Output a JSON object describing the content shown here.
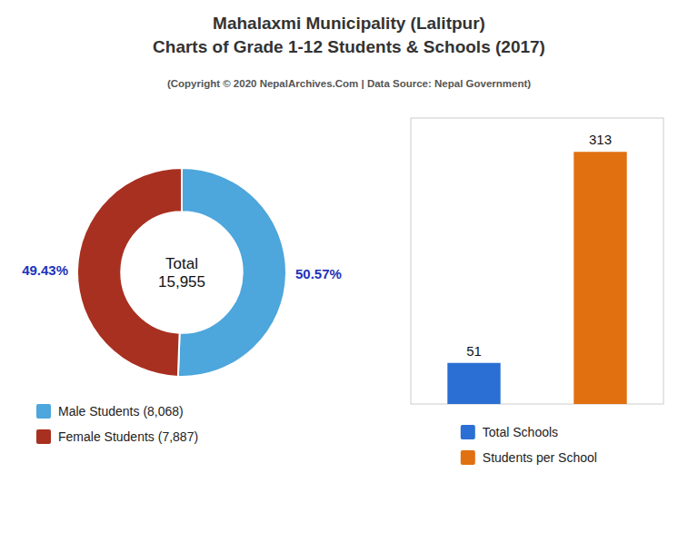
{
  "chart_data": [
    {
      "type": "donut",
      "title": "Mahalaxmi Municipality (Lalitpur)\nCharts of Grade 1-12 Students & Schools (2017)",
      "subtitle": "(Copyright © 2020 NepalArchives.Com | Data Source: Nepal Government)",
      "categories": [
        "Male Students (8,068)",
        "Female Students (7,887)"
      ],
      "values": [
        50.57,
        49.43
      ],
      "value_labels": [
        "50.57%",
        "49.43%"
      ],
      "colors": [
        "#4da6dc",
        "#a83020"
      ],
      "annotations": [
        "Total\n15,955"
      ],
      "data_labels": true,
      "legend": "lower left"
    },
    {
      "type": "bar",
      "categories": [
        "Total Schools",
        "Students per School"
      ],
      "values": [
        51,
        313
      ],
      "colors": [
        "#2b6fd4",
        "#e07010"
      ],
      "ylim": [
        0,
        355
      ],
      "data_labels": true,
      "tick_labels": false,
      "legend": "lower center"
    }
  ]
}
